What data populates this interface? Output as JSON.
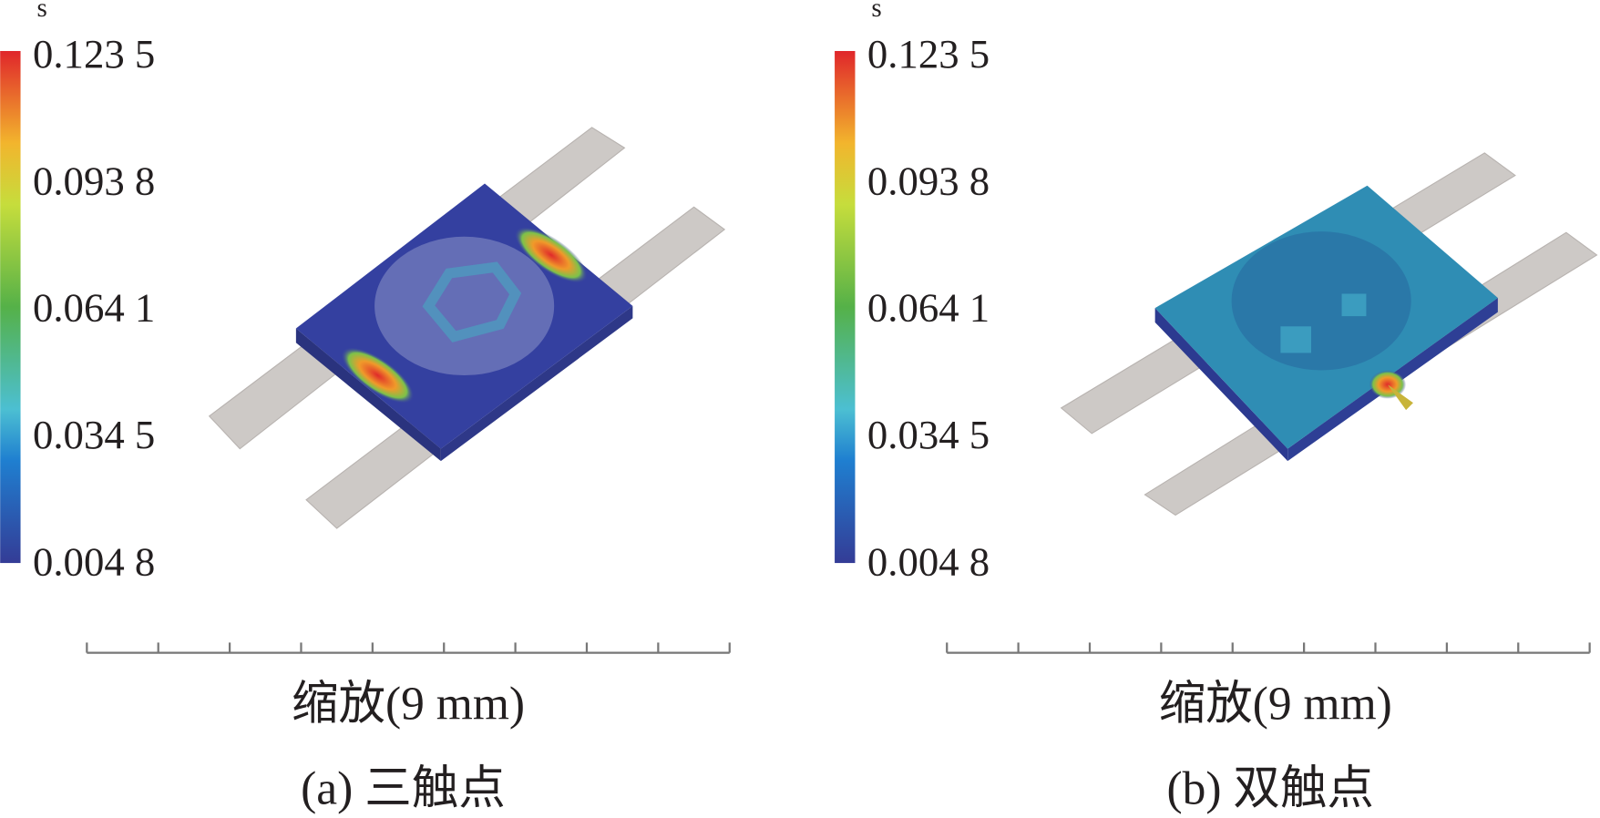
{
  "panels": [
    {
      "unit": "s",
      "colorbar_labels": [
        "0.123 5",
        "0.093 8",
        "0.064 1",
        "0.034 5",
        "0.004 8"
      ],
      "scale_label": "缩放(9 mm)",
      "caption": "(a) 三触点"
    },
    {
      "unit": "s",
      "colorbar_labels": [
        "0.123 5",
        "0.093 8",
        "0.064 1",
        "0.034 5",
        "0.004 8"
      ],
      "scale_label": "缩放(9 mm)",
      "caption": "(b) 双触点"
    }
  ]
}
